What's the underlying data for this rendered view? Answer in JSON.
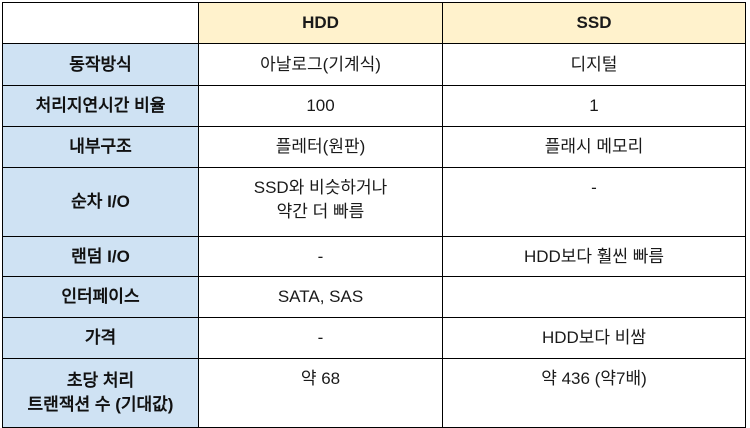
{
  "table": {
    "headers": [
      "",
      "HDD",
      "SSD"
    ],
    "rows": [
      {
        "label": "동작방식",
        "hdd": "아날로그(기계식)",
        "ssd": "디지털"
      },
      {
        "label": "처리지연시간 비율",
        "hdd": "100",
        "ssd": "1"
      },
      {
        "label": "내부구조",
        "hdd": "플레터(원판)",
        "ssd": "플래시 메모리"
      },
      {
        "label": "순차 I/O",
        "hdd": [
          "SSD와 비슷하거나",
          "약간 더 빠름"
        ],
        "ssd": "-"
      },
      {
        "label": "랜덤 I/O",
        "hdd": "-",
        "ssd": "HDD보다 훨씬 빠름"
      },
      {
        "label": "인터페이스",
        "hdd": "SATA, SAS",
        "ssd": ""
      },
      {
        "label": "가격",
        "hdd": "-",
        "ssd": "HDD보다 비쌈"
      },
      {
        "label": [
          "초당 처리",
          "트랜잭션 수 (기대값)"
        ],
        "hdd": "약 68",
        "ssd": "약 436 (약7배)"
      }
    ]
  },
  "colors": {
    "header_bg": "#fff2cc",
    "label_bg": "#cfe2f3",
    "border": "#000000"
  }
}
